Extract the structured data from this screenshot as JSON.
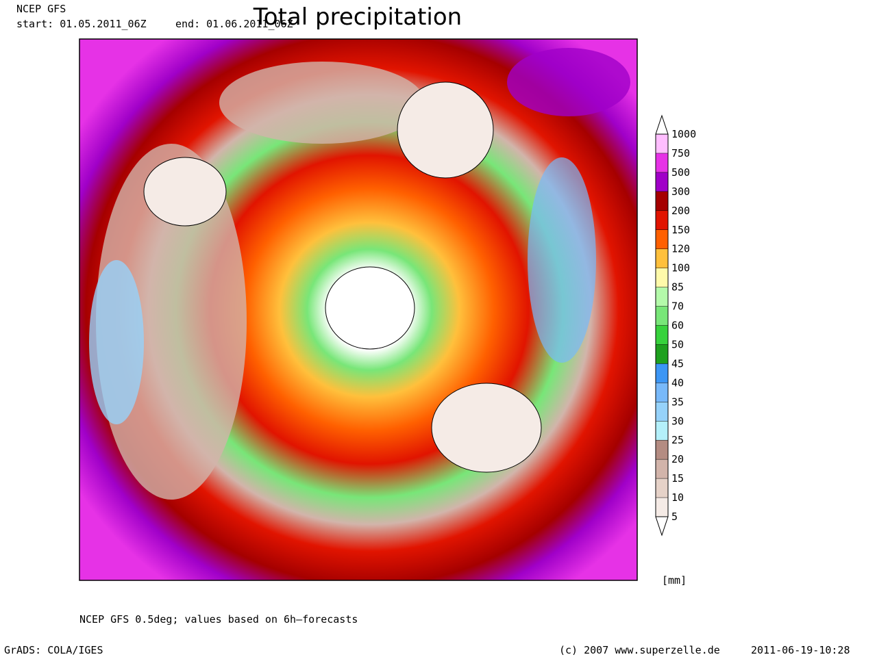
{
  "header": {
    "model": "NCEP GFS",
    "start": "start: 01.05.2011_06Z",
    "end": "end: 01.06.2011_06Z",
    "title": "Total precipitation"
  },
  "colorbar": {
    "levels": [
      5,
      10,
      15,
      20,
      25,
      30,
      35,
      40,
      45,
      50,
      60,
      70,
      85,
      100,
      120,
      150,
      200,
      300,
      500,
      750,
      1000
    ],
    "colors": [
      "#ffffff",
      "#f5ebe6",
      "#e6d2c8",
      "#d2b4aa",
      "#b48c82",
      "#b4f0fa",
      "#96d2fa",
      "#78b9fa",
      "#3c96f5",
      "#1ea01e",
      "#37d23c",
      "#78e678",
      "#b4faaa",
      "#fffaaa",
      "#ffc03c",
      "#ff6000",
      "#e11400",
      "#a50000",
      "#a000c8",
      "#e632e6",
      "#ffbeff",
      "#ffffff"
    ],
    "unit": "[mm]"
  },
  "footer": {
    "note": "NCEP GFS 0.5deg; values based on 6h–forecasts",
    "software": "GrADS: COLA/IGES",
    "copyright": "(c) 2007 www.superzelle.de",
    "timestamp": "2011-06-19-10:28"
  }
}
